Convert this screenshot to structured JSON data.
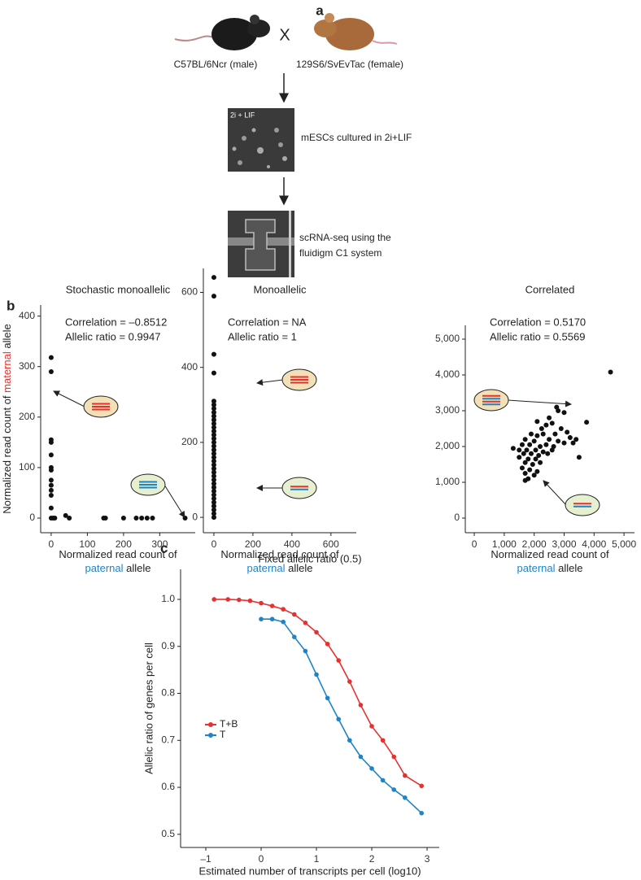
{
  "panel_a": {
    "label": "a",
    "strain_1": "C57BL/6Ncr (male)",
    "cross": "X",
    "strain_2": "129S6/SvEvTac (female)",
    "culture_image_label": "2i + LIF",
    "step_1": "mESCs cultured in 2i+LIF",
    "step_2": [
      "scRNA-seq using the",
      "fluidigm C1 system"
    ]
  },
  "panel_b_label": "b",
  "panel_c_label": "c",
  "chart_data": [
    {
      "type": "scatter",
      "title": "Stochastic monoallelic",
      "annotations": [
        "Correlation = –0.8512",
        "Allelic ratio = 0.9947"
      ],
      "x": [
        0,
        0,
        0,
        0,
        0,
        0,
        0,
        0,
        0,
        0,
        0,
        0,
        0,
        5,
        10,
        40,
        50,
        145,
        150,
        200,
        235,
        250,
        265,
        280,
        370
      ],
      "values": [
        318,
        290,
        155,
        150,
        125,
        100,
        95,
        75,
        65,
        55,
        45,
        20,
        0,
        0,
        0,
        5,
        0,
        0,
        0,
        0,
        0,
        0,
        0,
        0,
        0
      ],
      "color": "#111111",
      "xlim": [
        -29,
        398
      ],
      "ylim": [
        -29,
        422
      ],
      "xticks": [
        0,
        100,
        200,
        300
      ],
      "yticks": [
        0,
        100,
        200,
        300,
        400
      ],
      "y_label": [
        {
          "text": "Normalized read count of "
        },
        {
          "text": "maternal",
          "color": "#e8312f"
        },
        {
          "text": " allele"
        }
      ],
      "x_label": [
        [
          {
            "text": "Normalized read count of"
          }
        ],
        [
          {
            "text": "paternal",
            "color": "#1f84c6"
          },
          {
            "text": " allele"
          }
        ]
      ]
    },
    {
      "type": "scatter",
      "title": "Monoallelic",
      "annotations": [
        "Correlation = NA",
        "Allelic ratio = 1"
      ],
      "x": [
        0,
        0,
        0,
        0,
        0,
        0,
        0,
        0,
        0,
        0,
        0,
        0,
        0,
        0,
        0,
        0,
        0,
        0,
        0,
        0,
        0,
        0,
        0,
        0,
        0,
        0,
        0,
        0,
        0,
        0,
        0,
        0,
        0,
        0,
        0,
        0
      ],
      "values": [
        640,
        590,
        435,
        385,
        310,
        300,
        290,
        280,
        270,
        260,
        250,
        240,
        230,
        220,
        210,
        200,
        190,
        180,
        170,
        160,
        150,
        140,
        130,
        120,
        110,
        100,
        90,
        80,
        70,
        60,
        50,
        40,
        30,
        20,
        10,
        0
      ],
      "color": "#111111",
      "xlim": [
        -54,
        730
      ],
      "ylim": [
        -41,
        664
      ],
      "xticks": [
        0,
        200,
        400,
        600
      ],
      "yticks": [
        0,
        200,
        400,
        600
      ],
      "x_label": [
        [
          {
            "text": "Normalized read count of"
          }
        ],
        [
          {
            "text": "paternal",
            "color": "#1f84c6"
          },
          {
            "text": " allele"
          }
        ]
      ]
    },
    {
      "type": "scatter",
      "title": "Correlated",
      "annotations": [
        "Correlation = 0.5170",
        "Allelic ratio = 0.5569"
      ],
      "x": [
        4550,
        3750,
        2750,
        2800,
        3000,
        2500,
        2100,
        2400,
        2600,
        2250,
        2900,
        3100,
        1900,
        2100,
        2300,
        2700,
        3200,
        3400,
        1700,
        2000,
        2500,
        2800,
        3000,
        3300,
        1600,
        1850,
        2200,
        2400,
        2650,
        1300,
        1500,
        1750,
        2050,
        2300,
        2600,
        3500,
        1650,
        1900,
        2150,
        2450,
        1500,
        1800,
        2050,
        1700,
        1950,
        2200,
        1600,
        1850,
        2100,
        1700,
        2000,
        1800,
        1700
      ],
      "values": [
        4080,
        2680,
        3100,
        3000,
        2950,
        2800,
        2700,
        2600,
        2650,
        2500,
        2500,
        2400,
        2350,
        2300,
        2350,
        2350,
        2250,
        2200,
        2200,
        2150,
        2200,
        2150,
        2100,
        2100,
        2050,
        2050,
        2000,
        2050,
        2000,
        1950,
        1900,
        1900,
        1900,
        1850,
        1900,
        1700,
        1800,
        1800,
        1750,
        1800,
        1700,
        1650,
        1650,
        1550,
        1500,
        1550,
        1400,
        1350,
        1300,
        1250,
        1200,
        1100,
        1050
      ],
      "color": "#111111",
      "xlim": [
        -300,
        5350
      ],
      "ylim": [
        -409,
        5386
      ],
      "xticks": [
        0,
        {
          "value": 1000,
          "label": "1,000"
        },
        {
          "value": 2000,
          "label": "2,000"
        },
        {
          "value": 3000,
          "label": "3,000"
        },
        {
          "value": 4000,
          "label": "4,000"
        },
        {
          "value": 5000,
          "label": "5,000"
        }
      ],
      "yticks": [
        0,
        {
          "value": 1000,
          "label": "1,000"
        },
        {
          "value": 2000,
          "label": "2,000"
        },
        {
          "value": 3000,
          "label": "3,000"
        },
        {
          "value": 4000,
          "label": "4,000"
        },
        {
          "value": 5000,
          "label": "5,000"
        }
      ],
      "x_label": [
        [
          {
            "text": "Normalized read count of"
          }
        ],
        [
          {
            "text": "paternal",
            "color": "#1f84c6"
          },
          {
            "text": " allele"
          }
        ]
      ]
    },
    {
      "type": "line",
      "title": "Fixed allelic ratio (0.5)",
      "x_label": "Estimated number of transcripts per cell (log10)",
      "y_label": "Allelic ratio of genes per cell",
      "series": [
        {
          "name": "T+B",
          "color": "#e8312f",
          "x": [
            -0.85,
            -0.6,
            -0.4,
            -0.2,
            0,
            0.2,
            0.4,
            0.6,
            0.8,
            1.0,
            1.2,
            1.4,
            1.6,
            1.8,
            2.0,
            2.2,
            2.4,
            2.6,
            2.9
          ],
          "values": [
            1.0,
            1.0,
            0.999,
            0.997,
            0.992,
            0.986,
            0.979,
            0.968,
            0.95,
            0.93,
            0.905,
            0.87,
            0.825,
            0.775,
            0.73,
            0.7,
            0.665,
            0.625,
            0.603
          ]
        },
        {
          "name": "T",
          "color": "#1f84c6",
          "x": [
            0,
            0.2,
            0.4,
            0.6,
            0.8,
            1.0,
            1.2,
            1.4,
            1.6,
            1.8,
            2.0,
            2.2,
            2.4,
            2.6,
            2.9
          ],
          "values": [
            0.958,
            0.958,
            0.952,
            0.92,
            0.89,
            0.84,
            0.79,
            0.745,
            0.7,
            0.665,
            0.64,
            0.615,
            0.595,
            0.578,
            0.545
          ]
        }
      ],
      "xlim": [
        -1.456,
        3.22
      ],
      "ylim": [
        0.472,
        1.064
      ],
      "xticks": [
        {
          "value": -1,
          "label": "–1"
        },
        0,
        1,
        2,
        3
      ],
      "yticks": [
        0.5,
        0.6,
        0.7,
        0.8,
        0.9,
        {
          "value": 1,
          "label": "1.0"
        }
      ],
      "legend": "left"
    }
  ]
}
